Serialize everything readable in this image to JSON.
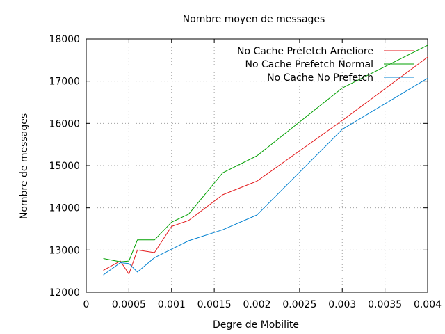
{
  "chart_data": {
    "type": "line",
    "title": "Nombre moyen de messages",
    "xlabel": "Degre de Mobilite",
    "ylabel": "Nombre de messages",
    "xlim": [
      0,
      0.004
    ],
    "ylim": [
      12000,
      18000
    ],
    "x_ticks": [
      0,
      0.0005,
      0.001,
      0.0015,
      0.002,
      0.0025,
      0.003,
      0.0035,
      0.004
    ],
    "x_tick_labels": [
      "0",
      "0.0005",
      "0.001",
      "0.0015",
      "0.002",
      "0.0025",
      "0.003",
      "0.0035",
      "0.004"
    ],
    "y_ticks": [
      12000,
      13000,
      14000,
      15000,
      16000,
      17000,
      18000
    ],
    "y_tick_labels": [
      "12000",
      "13000",
      "14000",
      "15000",
      "16000",
      "17000",
      "18000"
    ],
    "grid": true,
    "legend_position": "top-right",
    "series": [
      {
        "name": "No Cache Prefetch Ameliore",
        "color": "#e41a1c",
        "x": [
          0.0002,
          0.0004,
          0.0005,
          0.0006,
          0.0008,
          0.001,
          0.0012,
          0.0016,
          0.002,
          0.003,
          0.004
        ],
        "y": [
          12520,
          12740,
          12430,
          13000,
          12940,
          13560,
          13700,
          14310,
          14630,
          16070,
          17570
        ]
      },
      {
        "name": "No Cache Prefetch Normal",
        "color": "#00a000",
        "x": [
          0.0002,
          0.0004,
          0.0005,
          0.0006,
          0.0008,
          0.001,
          0.0012,
          0.0016,
          0.002,
          0.003,
          0.004
        ],
        "y": [
          12800,
          12720,
          12740,
          13240,
          13240,
          13660,
          13850,
          14830,
          15230,
          16840,
          17850
        ]
      },
      {
        "name": "No Cache No Prefetch",
        "color": "#0080d0",
        "x": [
          0.0002,
          0.0004,
          0.0005,
          0.0006,
          0.0008,
          0.001,
          0.0012,
          0.0016,
          0.002,
          0.003,
          0.004
        ],
        "y": [
          12410,
          12700,
          12680,
          12480,
          12820,
          13020,
          13220,
          13480,
          13830,
          15860,
          17070
        ]
      }
    ]
  }
}
